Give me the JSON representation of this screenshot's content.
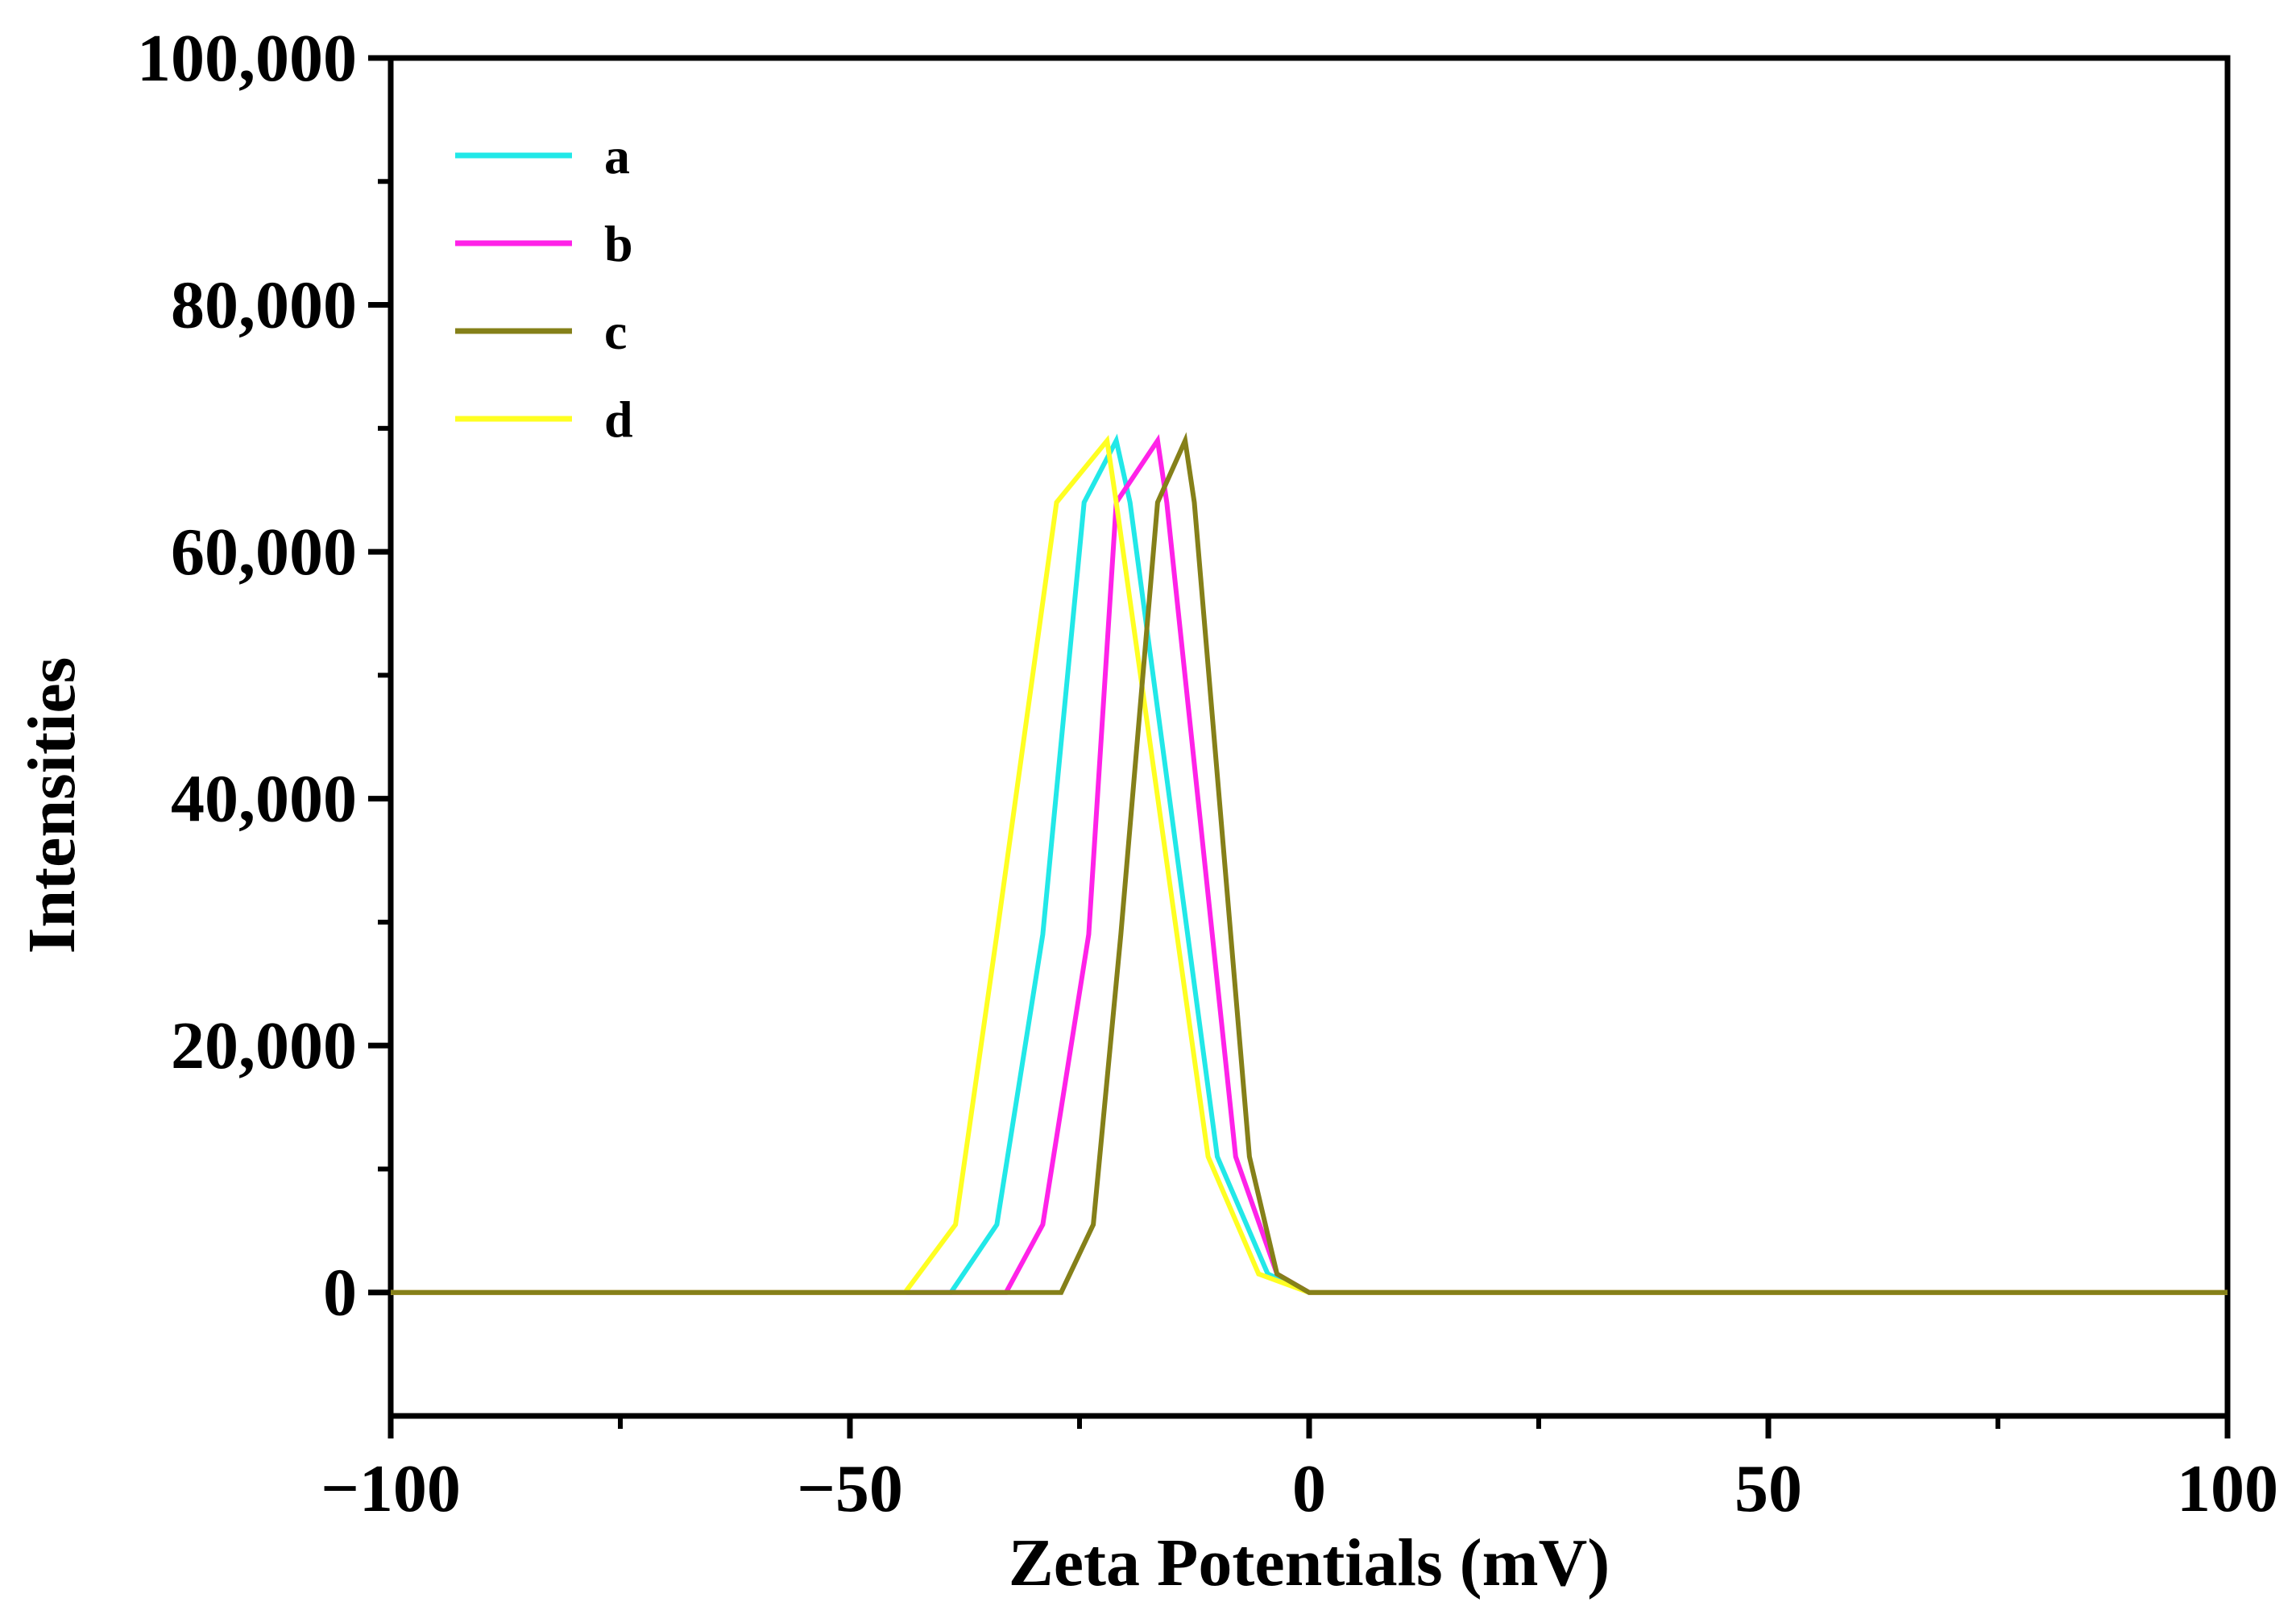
{
  "chart_data": {
    "type": "line",
    "title": "",
    "xlabel": "Zeta Potentials (mV)",
    "ylabel": "Intensities",
    "xlim": [
      -100,
      100
    ],
    "ylim": [
      -10000,
      100000
    ],
    "x_ticks": [
      -100,
      -50,
      0,
      50,
      100
    ],
    "x_tick_labels": [
      "−100",
      "−50",
      "0",
      "50",
      "100"
    ],
    "y_ticks": [
      0,
      20000,
      40000,
      60000,
      80000,
      100000
    ],
    "y_tick_labels": [
      "0",
      "20,000",
      "40,000",
      "60,000",
      "80,000",
      "100,000"
    ],
    "grid": false,
    "legend_position": "top-left",
    "series": [
      {
        "name": "a",
        "color": "#22e8e8",
        "x": [
          -100,
          -39,
          -34,
          -29,
          -24.5,
          -21,
          -19.5,
          -10,
          -4.5,
          0,
          100
        ],
        "y": [
          0,
          0,
          5500,
          29000,
          64000,
          69000,
          64000,
          11000,
          1500,
          0,
          0
        ]
      },
      {
        "name": "b",
        "color": "#ff22e8",
        "x": [
          -100,
          -33,
          -29,
          -24,
          -21,
          -16.5,
          -15.5,
          -8,
          -3.5,
          0,
          100
        ],
        "y": [
          0,
          0,
          5500,
          29000,
          64000,
          69000,
          64000,
          11000,
          1500,
          0,
          0
        ]
      },
      {
        "name": "c",
        "color": "#858019",
        "x": [
          -100,
          -27,
          -23.5,
          -20.5,
          -16.5,
          -13.5,
          -12.5,
          -6.5,
          -3.5,
          0,
          100
        ],
        "y": [
          0,
          0,
          5500,
          29000,
          64000,
          69000,
          64000,
          11000,
          1500,
          0,
          0
        ]
      },
      {
        "name": "d",
        "color": "#ffff22",
        "x": [
          -100,
          -44,
          -38.5,
          -34,
          -27.5,
          -22,
          -21,
          -11,
          -5.5,
          0,
          100
        ],
        "y": [
          0,
          0,
          5500,
          29000,
          64000,
          69000,
          64000,
          11000,
          1500,
          0,
          0
        ]
      }
    ]
  }
}
